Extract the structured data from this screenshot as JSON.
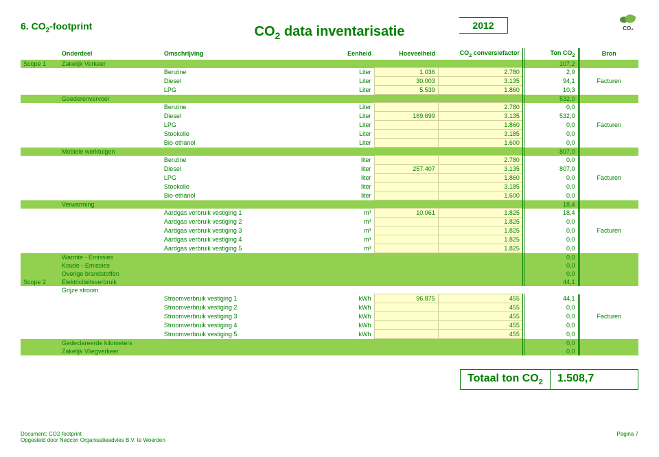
{
  "header": {
    "logo_label": "CO₂",
    "section_number": "6.",
    "section_title_html": "CO<sub>2</sub>-footprint",
    "year": "2012",
    "subtitle_html": "CO<sub>2</sub> data inventarisatie"
  },
  "columns": {
    "onderdeel": "Onderdeel",
    "omschrijving": "Omschrijving",
    "eenheid": "Eenheid",
    "hoeveelheid": "Hoeveelheid",
    "conversiefactor_html": "CO<sub>2</sub> conversiefactor",
    "tonco2_html": "Ton CO<sub>2</sub>",
    "bron": "Bron"
  },
  "groups": [
    {
      "scope": "Scope 1",
      "sections": [
        {
          "label": "Zakelijk Verkeer",
          "ton": "107,2",
          "rows": [
            {
              "omschrijving": "Benzine",
              "eenheid": "Liter",
              "hov": "1.036",
              "cf": "2.780",
              "ton": "2,9",
              "bron": ""
            },
            {
              "omschrijving": "Diesel",
              "eenheid": "Liter",
              "hov": "30.003",
              "cf": "3.135",
              "ton": "94,1",
              "bron": "Facturen"
            },
            {
              "omschrijving": "LPG",
              "eenheid": "Liter",
              "hov": "5.539",
              "cf": "1.860",
              "ton": "10,3",
              "bron": ""
            }
          ]
        },
        {
          "label": "Goederenvervoer",
          "ton": "532,0",
          "rows": [
            {
              "omschrijving": "Benzine",
              "eenheid": "Liter",
              "hov": "",
              "cf": "2.780",
              "ton": "0,0",
              "bron": ""
            },
            {
              "omschrijving": "Diesel",
              "eenheid": "Liter",
              "hov": "169.699",
              "cf": "3.135",
              "ton": "532,0",
              "bron": ""
            },
            {
              "omschrijving": "LPG",
              "eenheid": "Liter",
              "hov": "",
              "cf": "1.860",
              "ton": "0,0",
              "bron": "Facturen"
            },
            {
              "omschrijving": "Stookolie",
              "eenheid": "Liter",
              "hov": "",
              "cf": "3.185",
              "ton": "0,0",
              "bron": ""
            },
            {
              "omschrijving": "Bio-ethanol",
              "eenheid": "Liter",
              "hov": "",
              "cf": "1.600",
              "ton": "0,0",
              "bron": ""
            }
          ]
        },
        {
          "label": "Mobiele werktuigen",
          "ton": "807,0",
          "rows": [
            {
              "omschrijving": "Benzine",
              "eenheid": "liter",
              "hov": "",
              "cf": "2.780",
              "ton": "0,0",
              "bron": ""
            },
            {
              "omschrijving": "Diesel",
              "eenheid": "liter",
              "hov": "257.407",
              "cf": "3.135",
              "ton": "807,0",
              "bron": ""
            },
            {
              "omschrijving": "LPG",
              "eenheid": "liter",
              "hov": "",
              "cf": "1.860",
              "ton": "0,0",
              "bron": "Facturen"
            },
            {
              "omschrijving": "Stookolie",
              "eenheid": "liter",
              "hov": "",
              "cf": "3.185",
              "ton": "0,0",
              "bron": ""
            },
            {
              "omschrijving": "Bio-ethanol",
              "eenheid": "liter",
              "hov": "",
              "cf": "1.600",
              "ton": "0,0",
              "bron": ""
            }
          ]
        },
        {
          "label": "Verwarming",
          "ton": "18,4",
          "rows": [
            {
              "omschrijving": "Aardgas verbruik vestiging 1",
              "eenheid": "m³",
              "hov": "10.061",
              "cf": "1.825",
              "ton": "18,4",
              "bron": ""
            },
            {
              "omschrijving": "Aardgas verbruik vestiging 2",
              "eenheid": "m³",
              "hov": "",
              "cf": "1.825",
              "ton": "0,0",
              "bron": ""
            },
            {
              "omschrijving": "Aardgas verbruik vestiging 3",
              "eenheid": "m³",
              "hov": "",
              "cf": "1.825",
              "ton": "0,0",
              "bron": "Facturen"
            },
            {
              "omschrijving": "Aardgas verbruik vestiging 4",
              "eenheid": "m³",
              "hov": "",
              "cf": "1.825",
              "ton": "0,0",
              "bron": ""
            },
            {
              "omschrijving": "Aardgas verbruik vestiging 5",
              "eenheid": "m³",
              "hov": "",
              "cf": "1.825",
              "ton": "0,0",
              "bron": ""
            }
          ]
        },
        {
          "label": "Warmte - Emissies",
          "ton": "0,0",
          "rows": []
        },
        {
          "label": "Koude - Emissies",
          "ton": "0,0",
          "rows": []
        },
        {
          "label": "Overige brandstoffen",
          "ton": "0,0",
          "rows": []
        }
      ]
    },
    {
      "scope": "Scope 2",
      "sections": [
        {
          "label": "Elektriciteitsverbruik",
          "ton": "44,1",
          "rows": []
        },
        {
          "label": "Grijze stroom",
          "ton": "",
          "noHighlight": true,
          "rows": [
            {
              "omschrijving": "Stroomverbruik vestiging 1",
              "eenheid": "kWh",
              "hov": "96.875",
              "cf": "455",
              "ton": "44,1",
              "bron": ""
            },
            {
              "omschrijving": "Stroomverbruik vestiging 2",
              "eenheid": "kWh",
              "hov": "",
              "cf": "455",
              "ton": "0,0",
              "bron": ""
            },
            {
              "omschrijving": "Stroomverbruik vestiging 3",
              "eenheid": "kWh",
              "hov": "",
              "cf": "455",
              "ton": "0,0",
              "bron": "Facturen"
            },
            {
              "omschrijving": "Stroomverbruik vestiging 4",
              "eenheid": "kWh",
              "hov": "",
              "cf": "455",
              "ton": "0,0",
              "bron": ""
            },
            {
              "omschrijving": "Stroomverbruik vestiging 5",
              "eenheid": "kWh",
              "hov": "",
              "cf": "455",
              "ton": "0,0",
              "bron": ""
            }
          ]
        },
        {
          "label": "Gedeclareerde kilometers",
          "ton": "0,0",
          "rows": []
        },
        {
          "label": "Zakelijk Vliegverkeer",
          "ton": "0,0",
          "rows": []
        }
      ]
    }
  ],
  "total": {
    "label_html": "Totaal ton CO<sub>2</sub>",
    "value": "1.508,7"
  },
  "footer": {
    "doc": "Document: CO2-footprint",
    "by": "Opgesteld door Nedcon Organisatieadvies B.V. te Woerden",
    "page": "Pagina 7"
  },
  "style": {
    "green": "#008000",
    "section_bg": "#92d050",
    "cell_bg": "#ffffcc"
  }
}
